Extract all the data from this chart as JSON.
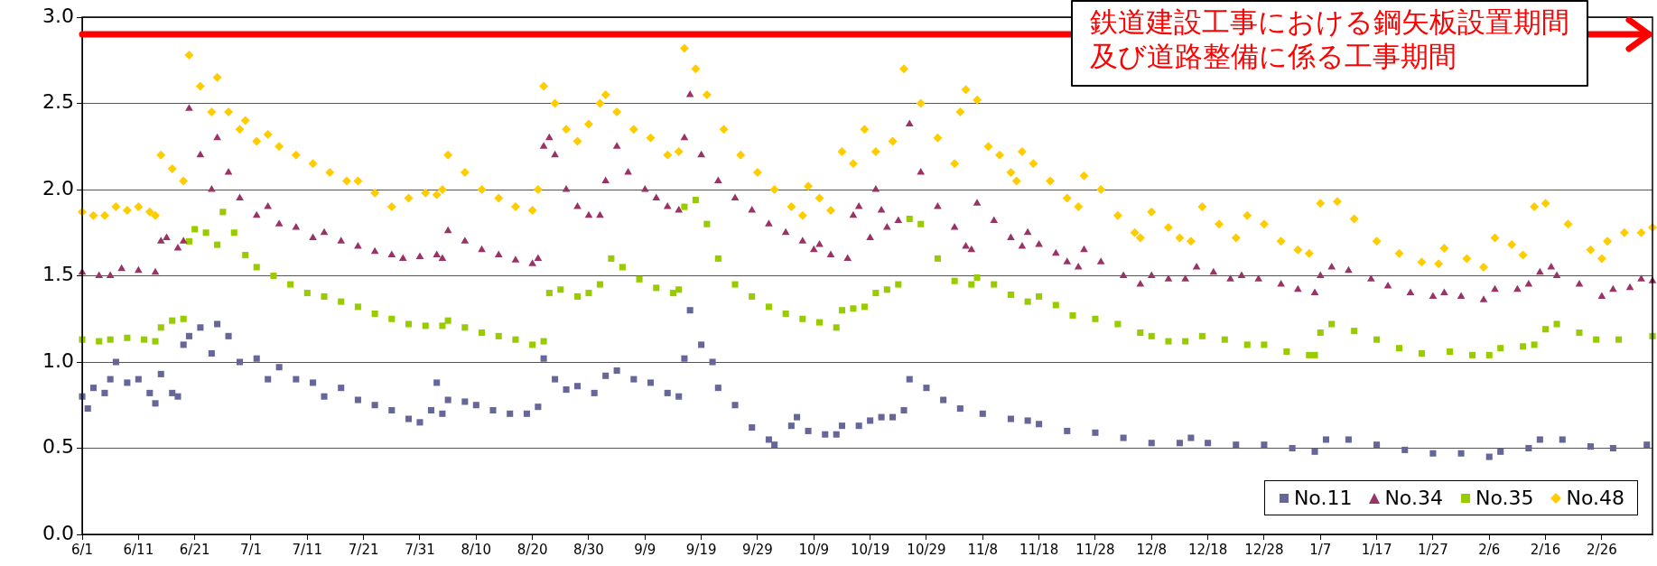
{
  "chart_data": {
    "type": "scatter",
    "categories": [
      "6/1",
      null,
      null,
      null,
      null,
      null,
      null,
      null,
      null,
      null,
      "6/11",
      null,
      null,
      null,
      null,
      null,
      null,
      null,
      null,
      null,
      "6/21",
      null,
      null,
      null,
      null,
      null,
      null,
      null,
      null,
      null,
      "7/1",
      null,
      null,
      null,
      null,
      null,
      null,
      null,
      null,
      null,
      "7/11",
      null,
      null,
      null,
      null,
      null,
      null,
      null,
      null,
      null,
      "7/21",
      null,
      null,
      null,
      null,
      null,
      null,
      null,
      null,
      null,
      "7/31",
      null,
      null,
      null,
      null,
      null,
      null,
      null,
      null,
      null,
      "8/10",
      null,
      null,
      null,
      null,
      null,
      null,
      null,
      null,
      null,
      "8/20",
      null,
      null,
      null,
      null,
      null,
      null,
      null,
      null,
      null,
      "8/30",
      null,
      null,
      null,
      null,
      null,
      null,
      null,
      null,
      null,
      "9/9",
      null,
      null,
      null,
      null,
      null,
      null,
      null,
      null,
      null,
      "9/19",
      null,
      null,
      null,
      null,
      null,
      null,
      null,
      null,
      null,
      "9/29",
      null,
      null,
      null,
      null,
      null,
      null,
      null,
      null,
      null,
      "10/9",
      null,
      null,
      null,
      null,
      null,
      null,
      null,
      null,
      null,
      "10/19",
      null,
      null,
      null,
      null,
      null,
      null,
      null,
      null,
      null,
      "10/29",
      null,
      null,
      null,
      null,
      null,
      null,
      null,
      null,
      null,
      "11/8",
      null,
      null,
      null,
      null,
      null,
      null,
      null,
      null,
      null,
      "11/18",
      null,
      null,
      null,
      null,
      null,
      null,
      null,
      null,
      null,
      "11/28",
      null,
      null,
      null,
      null,
      null,
      null,
      null,
      null,
      null,
      "12/8",
      null,
      null,
      null,
      null,
      null,
      null,
      null,
      null,
      null,
      "12/18",
      null,
      null,
      null,
      null,
      null,
      null,
      null,
      null,
      null,
      "12/28",
      null,
      null,
      null,
      null,
      null,
      null,
      null,
      null,
      null,
      "1/7",
      null,
      null,
      null,
      null,
      null,
      null,
      null,
      null,
      null,
      "1/17",
      null,
      null,
      null,
      null,
      null,
      null,
      null,
      null,
      null,
      "1/27",
      null,
      null,
      null,
      null,
      null,
      null,
      null,
      null,
      null,
      "2/6",
      null,
      null,
      null,
      null,
      null,
      null,
      null,
      null,
      null,
      "2/16",
      null,
      null,
      null,
      null,
      null,
      null,
      null,
      null,
      null,
      "2/26",
      null,
      null,
      null,
      null,
      null,
      null,
      null,
      null,
      null
    ],
    "ylim": [
      0,
      3
    ],
    "yticks": [
      {
        "value": 0,
        "label": "0.0"
      },
      {
        "value": 0.5,
        "label": "0.5"
      },
      {
        "value": 1,
        "label": "1.0"
      },
      {
        "value": 1.5,
        "label": "1.5"
      },
      {
        "value": 2,
        "label": "2.0"
      },
      {
        "value": 2.5,
        "label": "2.5"
      },
      {
        "value": 3,
        "label": "3.0"
      }
    ],
    "grid": "y",
    "legend": "bottom right",
    "ref_lines": [
      {
        "axis": "y",
        "value": 2.9,
        "label": "鉄道建設工事における鋼矢板設置期間及び道路整備に係る工事期間",
        "color": "#ff0000"
      }
    ],
    "series": [
      {
        "name": "No.11",
        "color": "#666699",
        "marker": "square",
        "values": [
          0.8,
          0.73,
          0.85,
          null,
          0.82,
          0.9,
          1.0,
          null,
          0.88,
          null,
          0.9,
          null,
          0.82,
          0.76,
          0.93,
          null,
          0.82,
          0.8,
          1.1,
          1.15,
          null,
          1.2,
          null,
          1.05,
          1.22,
          null,
          1.15,
          null,
          1.0,
          null,
          null,
          1.02,
          null,
          0.9,
          null,
          0.97,
          null,
          null,
          0.9,
          null,
          null,
          0.88,
          null,
          0.8,
          null,
          null,
          0.85,
          null,
          null,
          0.78,
          null,
          null,
          0.75,
          null,
          null,
          0.72,
          null,
          null,
          0.67,
          null,
          0.65,
          null,
          0.72,
          0.88,
          0.7,
          0.78,
          null,
          null,
          0.77,
          null,
          0.75,
          null,
          null,
          0.72,
          null,
          null,
          0.7,
          null,
          null,
          0.7,
          null,
          0.74,
          1.02,
          null,
          0.9,
          null,
          0.84,
          null,
          0.86,
          null,
          null,
          0.82,
          null,
          0.92,
          null,
          0.95,
          null,
          null,
          0.9,
          null,
          null,
          0.88,
          null,
          null,
          0.82,
          null,
          0.8,
          1.02,
          1.3,
          null,
          1.1,
          null,
          1.0,
          0.85,
          null,
          null,
          0.75,
          null,
          null,
          0.62,
          null,
          null,
          0.55,
          0.52,
          null,
          null,
          0.63,
          0.68,
          null,
          0.6,
          null,
          null,
          0.58,
          null,
          0.58,
          0.63,
          null,
          null,
          0.63,
          null,
          0.66,
          null,
          0.68,
          null,
          0.68,
          null,
          0.72,
          0.9,
          null,
          null,
          0.85,
          null,
          null,
          0.78,
          null,
          null,
          0.73,
          null,
          null,
          null,
          0.7,
          null,
          null,
          null,
          null,
          0.67,
          null,
          null,
          0.66,
          null,
          0.64,
          null,
          null,
          null,
          null,
          0.6,
          null,
          null,
          null,
          null,
          0.59,
          null,
          null,
          null,
          null,
          0.56,
          null,
          null,
          null,
          null,
          0.53,
          null,
          null,
          null,
          null,
          0.53,
          null,
          0.56,
          null,
          null,
          0.53,
          null,
          null,
          null,
          null,
          0.52,
          null,
          null,
          null,
          null,
          0.52,
          null,
          null,
          null,
          null,
          0.5,
          null,
          null,
          null,
          0.48,
          null,
          0.55,
          null,
          null,
          null,
          0.55,
          null,
          null,
          null,
          null,
          0.52,
          null,
          null,
          null,
          null,
          0.49,
          null,
          null,
          null,
          null,
          0.47,
          null,
          null,
          null,
          null,
          0.47,
          null,
          null,
          null,
          null,
          0.45,
          null,
          0.48,
          null,
          null,
          null,
          null,
          0.5,
          null,
          0.55,
          null,
          null,
          null,
          0.55,
          null,
          null,
          null,
          null,
          0.51,
          null,
          null,
          null,
          0.5,
          null,
          null,
          null,
          null,
          null,
          0.52,
          null
        ]
      },
      {
        "name": "No.34",
        "color": "#993366",
        "marker": "triangle",
        "values": [
          1.52,
          null,
          null,
          1.5,
          null,
          1.5,
          null,
          1.54,
          null,
          null,
          1.53,
          null,
          null,
          1.52,
          1.7,
          1.72,
          null,
          1.66,
          1.7,
          2.47,
          null,
          2.2,
          null,
          2.0,
          2.3,
          null,
          2.1,
          null,
          1.95,
          null,
          null,
          1.85,
          null,
          1.9,
          null,
          1.8,
          null,
          null,
          1.78,
          null,
          null,
          1.72,
          null,
          1.75,
          null,
          null,
          1.7,
          null,
          null,
          1.67,
          null,
          null,
          1.64,
          null,
          null,
          1.62,
          null,
          1.6,
          null,
          null,
          1.61,
          null,
          null,
          1.62,
          1.6,
          1.76,
          null,
          null,
          1.7,
          null,
          null,
          1.65,
          null,
          null,
          1.62,
          null,
          null,
          1.59,
          null,
          null,
          1.57,
          1.6,
          2.25,
          2.3,
          2.2,
          null,
          2.0,
          null,
          1.9,
          null,
          1.85,
          null,
          1.85,
          2.05,
          null,
          2.25,
          null,
          2.1,
          null,
          null,
          2.0,
          null,
          1.95,
          null,
          1.9,
          null,
          1.88,
          2.3,
          2.55,
          null,
          2.2,
          null,
          null,
          2.05,
          null,
          null,
          1.95,
          null,
          null,
          1.88,
          null,
          null,
          1.8,
          null,
          null,
          1.75,
          null,
          null,
          1.7,
          null,
          1.65,
          1.68,
          null,
          1.62,
          null,
          null,
          1.6,
          1.85,
          1.9,
          null,
          1.72,
          2.0,
          1.88,
          1.78,
          null,
          1.82,
          null,
          2.38,
          null,
          2.1,
          null,
          null,
          1.9,
          null,
          null,
          1.78,
          null,
          1.67,
          1.65,
          1.92,
          null,
          null,
          1.82,
          null,
          null,
          1.72,
          null,
          1.67,
          1.75,
          null,
          1.68,
          null,
          null,
          1.63,
          null,
          1.58,
          null,
          1.55,
          1.65,
          null,
          null,
          1.58,
          null,
          null,
          null,
          1.5,
          null,
          null,
          1.45,
          null,
          1.5,
          null,
          null,
          1.48,
          null,
          null,
          1.48,
          null,
          1.55,
          null,
          null,
          1.52,
          null,
          null,
          1.48,
          null,
          1.5,
          null,
          null,
          1.48,
          null,
          null,
          null,
          1.45,
          null,
          null,
          1.42,
          null,
          null,
          1.4,
          1.5,
          null,
          1.55,
          null,
          null,
          1.53,
          null,
          null,
          null,
          1.48,
          null,
          null,
          1.44,
          null,
          null,
          null,
          1.4,
          null,
          null,
          null,
          1.38,
          null,
          1.4,
          null,
          null,
          1.38,
          null,
          null,
          null,
          1.36,
          null,
          1.42,
          null,
          null,
          null,
          1.42,
          null,
          1.45,
          null,
          1.52,
          null,
          1.55,
          1.5,
          null,
          null,
          null,
          1.45,
          null,
          null,
          null,
          1.38,
          null,
          1.42,
          null,
          null,
          1.43,
          null,
          1.48,
          null,
          1.47
        ]
      },
      {
        "name": "No.35",
        "color": "#99cc00",
        "marker": "square",
        "values": [
          1.13,
          null,
          null,
          1.12,
          null,
          1.13,
          null,
          null,
          1.14,
          null,
          null,
          1.13,
          null,
          1.12,
          1.2,
          null,
          1.24,
          null,
          1.25,
          1.7,
          1.77,
          null,
          1.75,
          null,
          1.68,
          1.87,
          null,
          1.75,
          null,
          1.62,
          null,
          1.55,
          null,
          null,
          1.5,
          null,
          null,
          1.45,
          null,
          null,
          1.4,
          null,
          null,
          1.38,
          null,
          null,
          1.35,
          null,
          null,
          1.32,
          null,
          null,
          1.28,
          null,
          null,
          1.25,
          null,
          null,
          1.22,
          null,
          null,
          1.21,
          null,
          null,
          1.21,
          1.24,
          null,
          null,
          1.2,
          null,
          null,
          1.17,
          null,
          null,
          1.15,
          null,
          null,
          1.13,
          null,
          null,
          1.1,
          null,
          1.12,
          1.4,
          null,
          1.42,
          null,
          null,
          1.38,
          null,
          1.4,
          null,
          1.45,
          null,
          1.6,
          null,
          1.55,
          null,
          null,
          1.48,
          null,
          null,
          1.43,
          null,
          null,
          1.4,
          1.42,
          1.9,
          null,
          1.94,
          null,
          1.8,
          null,
          1.6,
          null,
          null,
          1.45,
          null,
          null,
          1.38,
          null,
          null,
          1.32,
          null,
          null,
          1.28,
          null,
          null,
          1.25,
          null,
          null,
          1.23,
          null,
          null,
          1.2,
          1.3,
          null,
          1.31,
          null,
          1.32,
          null,
          1.4,
          null,
          1.42,
          null,
          1.45,
          null,
          1.83,
          null,
          1.8,
          null,
          null,
          1.6,
          null,
          null,
          1.47,
          null,
          null,
          1.45,
          1.49,
          null,
          null,
          1.45,
          null,
          null,
          1.39,
          null,
          null,
          1.35,
          null,
          1.38,
          null,
          null,
          1.33,
          null,
          null,
          1.27,
          null,
          null,
          null,
          1.25,
          null,
          null,
          null,
          1.22,
          null,
          null,
          null,
          1.17,
          null,
          1.15,
          null,
          null,
          1.12,
          null,
          null,
          1.12,
          null,
          null,
          1.15,
          null,
          null,
          null,
          1.13,
          null,
          null,
          null,
          1.1,
          null,
          null,
          1.1,
          null,
          null,
          null,
          1.06,
          null,
          null,
          null,
          1.04,
          1.04,
          1.17,
          null,
          1.22,
          null,
          null,
          null,
          1.18,
          null,
          null,
          null,
          1.13,
          null,
          null,
          null,
          1.08,
          null,
          null,
          null,
          1.05,
          null,
          null,
          null,
          null,
          1.06,
          null,
          null,
          null,
          1.04,
          null,
          null,
          1.04,
          null,
          1.08,
          null,
          null,
          null,
          1.09,
          null,
          1.1,
          null,
          1.19,
          null,
          1.22,
          null,
          null,
          null,
          1.17,
          null,
          null,
          1.13,
          null,
          null,
          null,
          1.13,
          null,
          null,
          null,
          null,
          null,
          1.15
        ]
      },
      {
        "name": "No.48",
        "color": "#ffcc00",
        "marker": "diamond",
        "values": [
          1.87,
          null,
          1.85,
          null,
          1.85,
          null,
          1.9,
          null,
          1.88,
          null,
          1.9,
          null,
          1.87,
          1.85,
          2.2,
          null,
          2.12,
          null,
          2.05,
          2.78,
          null,
          2.6,
          null,
          2.45,
          2.65,
          null,
          2.45,
          null,
          2.35,
          2.4,
          null,
          2.28,
          null,
          2.32,
          null,
          2.25,
          null,
          null,
          2.2,
          null,
          null,
          2.15,
          null,
          null,
          2.1,
          null,
          null,
          2.05,
          null,
          2.05,
          null,
          null,
          1.98,
          null,
          null,
          1.9,
          null,
          null,
          1.95,
          null,
          null,
          1.98,
          null,
          1.97,
          2.0,
          2.2,
          null,
          null,
          2.1,
          null,
          null,
          2.0,
          null,
          null,
          1.95,
          null,
          null,
          1.9,
          null,
          null,
          1.88,
          2.0,
          2.6,
          null,
          2.5,
          null,
          2.35,
          null,
          2.28,
          null,
          2.38,
          null,
          2.5,
          2.55,
          null,
          2.45,
          null,
          null,
          2.35,
          null,
          null,
          2.3,
          null,
          null,
          2.2,
          null,
          2.22,
          2.82,
          null,
          2.7,
          null,
          2.55,
          null,
          null,
          2.35,
          null,
          null,
          2.2,
          null,
          null,
          2.1,
          null,
          null,
          2.0,
          null,
          null,
          1.9,
          null,
          1.85,
          2.02,
          null,
          1.95,
          null,
          1.88,
          null,
          2.22,
          null,
          2.15,
          null,
          2.35,
          null,
          2.22,
          null,
          null,
          2.28,
          null,
          2.7,
          null,
          null,
          2.5,
          null,
          null,
          2.3,
          null,
          null,
          2.15,
          2.45,
          2.58,
          null,
          2.52,
          null,
          2.25,
          null,
          2.2,
          null,
          2.1,
          2.05,
          2.22,
          null,
          2.15,
          null,
          null,
          2.05,
          null,
          null,
          1.95,
          null,
          1.9,
          2.08,
          null,
          null,
          2.0,
          null,
          null,
          1.85,
          null,
          null,
          1.75,
          1.72,
          null,
          1.87,
          null,
          null,
          1.78,
          null,
          1.72,
          null,
          1.7,
          null,
          1.9,
          null,
          null,
          1.8,
          null,
          null,
          1.72,
          null,
          1.85,
          null,
          null,
          1.8,
          null,
          null,
          1.7,
          null,
          null,
          1.65,
          null,
          1.63,
          null,
          1.92,
          null,
          null,
          1.93,
          null,
          null,
          1.83,
          null,
          null,
          null,
          1.7,
          null,
          null,
          null,
          1.63,
          null,
          null,
          null,
          1.58,
          null,
          null,
          1.57,
          1.66,
          null,
          null,
          null,
          1.6,
          null,
          null,
          1.55,
          null,
          1.72,
          null,
          null,
          1.68,
          null,
          1.62,
          null,
          1.9,
          null,
          1.92,
          null,
          null,
          null,
          1.8,
          null,
          null,
          null,
          1.65,
          null,
          1.6,
          1.7,
          null,
          null,
          1.75,
          null,
          null,
          1.75,
          null,
          1.78
        ]
      }
    ]
  }
}
